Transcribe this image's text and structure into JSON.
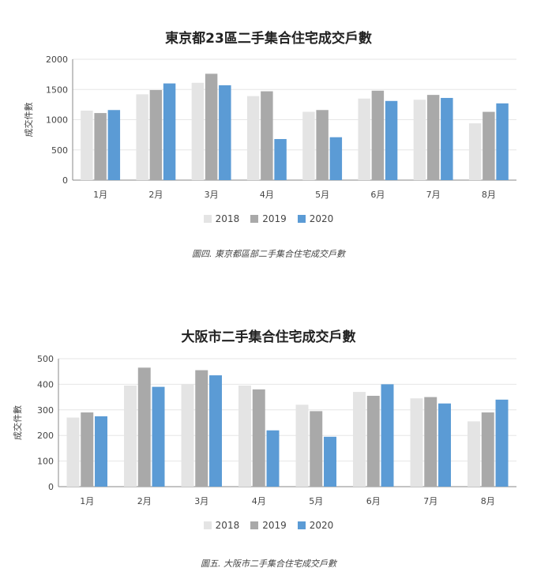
{
  "colors": {
    "2018": "#e4e4e4",
    "2019": "#a9a9a9",
    "2020": "#5b9bd5",
    "grid": "#e6e6e6",
    "axis": "#888888"
  },
  "charts": [
    {
      "caption": "圖四. 東京都區部二手集合住宅成交戶數"
    },
    {
      "caption": "圖五. 大阪市二手集合住宅成交戶數"
    }
  ],
  "chart_data": [
    {
      "type": "bar",
      "title": "東京都23區二手集合住宅成交戶數",
      "xlabel": "",
      "ylabel": "成交件數",
      "ylim": [
        0,
        2000
      ],
      "yticks": [
        0,
        500,
        1000,
        1500,
        2000
      ],
      "categories": [
        "1月",
        "2月",
        "3月",
        "4月",
        "5月",
        "6月",
        "7月",
        "8月"
      ],
      "series": [
        {
          "name": "2018",
          "values": [
            1150,
            1420,
            1610,
            1390,
            1130,
            1350,
            1330,
            940
          ]
        },
        {
          "name": "2019",
          "values": [
            1110,
            1490,
            1760,
            1470,
            1160,
            1480,
            1410,
            1130
          ]
        },
        {
          "name": "2020",
          "values": [
            1160,
            1600,
            1570,
            680,
            710,
            1310,
            1360,
            1270
          ]
        }
      ],
      "legend": "bottom",
      "grid": true
    },
    {
      "type": "bar",
      "title": "大阪市二手集合住宅成交戶數",
      "xlabel": "",
      "ylabel": "成交件數",
      "ylim": [
        0,
        500
      ],
      "yticks": [
        0,
        100,
        200,
        300,
        400,
        500
      ],
      "categories": [
        "1月",
        "2月",
        "3月",
        "4月",
        "5月",
        "6月",
        "7月",
        "8月"
      ],
      "series": [
        {
          "name": "2018",
          "values": [
            270,
            395,
            400,
            395,
            320,
            370,
            345,
            255
          ]
        },
        {
          "name": "2019",
          "values": [
            290,
            465,
            455,
            380,
            295,
            355,
            350,
            290
          ]
        },
        {
          "name": "2020",
          "values": [
            275,
            390,
            435,
            220,
            195,
            400,
            325,
            340
          ]
        }
      ],
      "legend": "bottom",
      "grid": true
    }
  ]
}
